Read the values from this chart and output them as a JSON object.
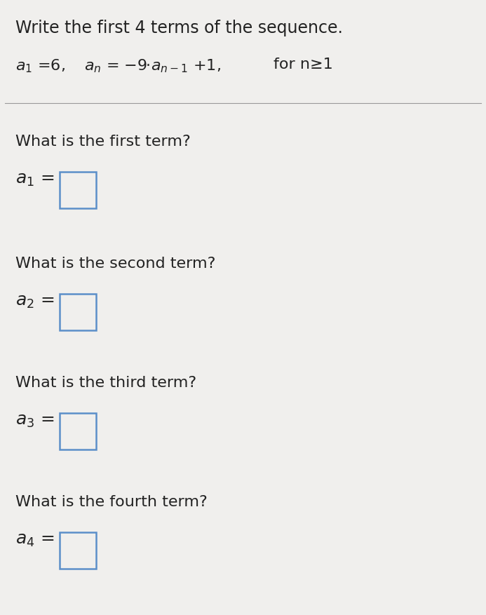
{
  "title_line": "Write the first 4 terms of the sequence.",
  "bg_color": "#f0efed",
  "text_color": "#222222",
  "box_color": "#5b8fc9",
  "box_fill": "#f0efed",
  "line_color": "#999999",
  "questions": [
    {
      "label": "What is the first term?",
      "sub": "1"
    },
    {
      "label": "What is the second term?",
      "sub": "2"
    },
    {
      "label": "What is the third term?",
      "sub": "3"
    },
    {
      "label": "What is the fourth term?",
      "sub": "4"
    }
  ],
  "title_fontsize": 17,
  "formula_fontsize": 16,
  "question_fontsize": 16,
  "term_fontsize": 16
}
